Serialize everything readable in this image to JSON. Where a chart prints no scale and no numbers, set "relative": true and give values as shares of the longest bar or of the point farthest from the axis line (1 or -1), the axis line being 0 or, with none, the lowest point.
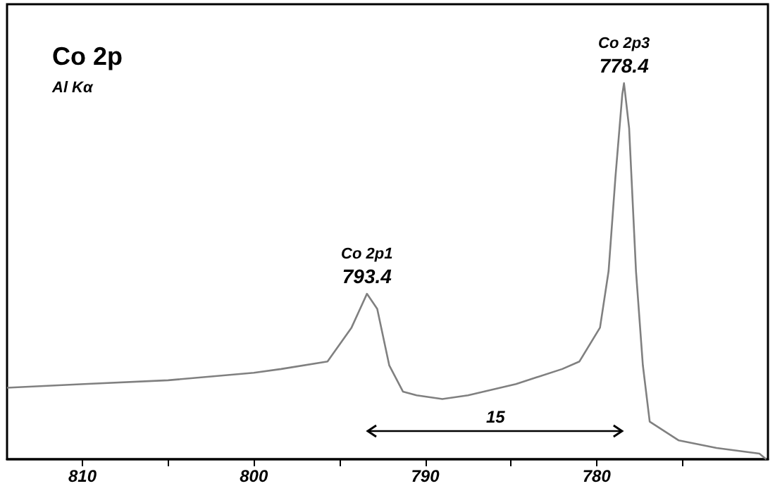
{
  "chart_data": {
    "type": "line",
    "title": "Co 2p",
    "subtitle": "Al Kα",
    "relative": true,
    "marker": "none",
    "line_style": "solid",
    "x": [
      814.4,
      809.9,
      805,
      800,
      798.4,
      795.7,
      794.3,
      793.8,
      793.4,
      792.8,
      792.1,
      791.3,
      790.5,
      789,
      787.5,
      784.7,
      782,
      781,
      779.8,
      779.3,
      778.9,
      778.5,
      778.4,
      778.1,
      777.7,
      777.3,
      776.9,
      775.2,
      773,
      770.5,
      770.1
    ],
    "series": [
      {
        "color": "#808080",
        "values": [
          0.19,
          0.2,
          0.21,
          0.23,
          0.24,
          0.26,
          0.35,
          0.4,
          0.44,
          0.4,
          0.25,
          0.18,
          0.17,
          0.16,
          0.17,
          0.2,
          0.24,
          0.26,
          0.35,
          0.5,
          0.75,
          0.97,
          1,
          0.88,
          0.5,
          0.25,
          0.1,
          0.05,
          0.03,
          0.015,
          0
        ]
      }
    ],
    "xlim": [
      814.4,
      770
    ],
    "xticks": [
      810,
      {
        "value": 805,
        "label": null
      },
      800,
      {
        "value": 795,
        "label": null
      },
      790,
      {
        "value": 785,
        "label": null
      },
      780,
      {
        "value": 775,
        "label": null
      }
    ],
    "annotations": [
      {
        "text": "Co 2p1\n793.4",
        "x": 793.4,
        "y": 0.44
      },
      {
        "text": "Co 2p3\n778.4",
        "x": 778.4,
        "y": 1
      },
      "15"
    ]
  }
}
